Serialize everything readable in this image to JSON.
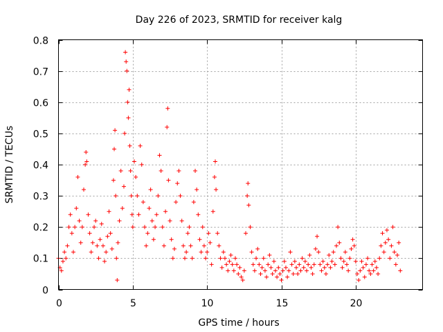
{
  "chart_data": {
    "type": "scatter",
    "title": "Day 226 of 2023, SRMTID for receiver kalg",
    "xlabel": "GPS time / hours",
    "ylabel": "SRMTID / TECUs",
    "xlim": [
      0,
      24.5
    ],
    "ylim": [
      0,
      0.8
    ],
    "x_ticks": [
      0,
      5,
      10,
      15,
      20
    ],
    "x_tick_labels": [
      "0",
      "5",
      "10",
      "15",
      "20"
    ],
    "y_ticks": [
      0,
      0.1,
      0.2,
      0.3,
      0.4,
      0.5,
      0.6,
      0.7,
      0.8
    ],
    "y_tick_labels": [
      "0",
      "0.1",
      "0.2",
      "0.3",
      "0.4",
      "0.5",
      "0.6",
      "0.7",
      "0.8"
    ],
    "grid": true,
    "marker": "+",
    "color": "#ff0000",
    "series": [
      {
        "name": "SRMTID",
        "points": [
          [
            0.0,
            0.1
          ],
          [
            0.1,
            0.07
          ],
          [
            0.2,
            0.06
          ],
          [
            0.3,
            0.09
          ],
          [
            0.4,
            0.12
          ],
          [
            0.5,
            0.1
          ],
          [
            0.6,
            0.14
          ],
          [
            0.7,
            0.2
          ],
          [
            0.8,
            0.24
          ],
          [
            0.9,
            0.18
          ],
          [
            1.0,
            0.12
          ],
          [
            1.1,
            0.2
          ],
          [
            1.2,
            0.26
          ],
          [
            1.3,
            0.36
          ],
          [
            1.4,
            0.22
          ],
          [
            1.5,
            0.15
          ],
          [
            1.6,
            0.2
          ],
          [
            1.7,
            0.32
          ],
          [
            1.8,
            0.4
          ],
          [
            1.85,
            0.44
          ],
          [
            1.9,
            0.41
          ],
          [
            2.0,
            0.24
          ],
          [
            2.1,
            0.18
          ],
          [
            2.2,
            0.12
          ],
          [
            2.3,
            0.15
          ],
          [
            2.4,
            0.2
          ],
          [
            2.5,
            0.22
          ],
          [
            2.6,
            0.14
          ],
          [
            2.7,
            0.1
          ],
          [
            2.8,
            0.16
          ],
          [
            2.9,
            0.21
          ],
          [
            3.0,
            0.14
          ],
          [
            3.1,
            0.09
          ],
          [
            3.2,
            0.12
          ],
          [
            3.3,
            0.17
          ],
          [
            3.4,
            0.25
          ],
          [
            3.5,
            0.18
          ],
          [
            3.6,
            0.13
          ],
          [
            3.7,
            0.35
          ],
          [
            3.75,
            0.45
          ],
          [
            3.8,
            0.51
          ],
          [
            3.85,
            0.3
          ],
          [
            3.9,
            0.1
          ],
          [
            3.95,
            0.03
          ],
          [
            4.0,
            0.15
          ],
          [
            4.1,
            0.22
          ],
          [
            4.2,
            0.38
          ],
          [
            4.3,
            0.26
          ],
          [
            4.4,
            0.33
          ],
          [
            4.45,
            0.5
          ],
          [
            4.5,
            0.76
          ],
          [
            4.55,
            0.73
          ],
          [
            4.6,
            0.7
          ],
          [
            4.65,
            0.6
          ],
          [
            4.7,
            0.55
          ],
          [
            4.75,
            0.64
          ],
          [
            4.8,
            0.46
          ],
          [
            4.85,
            0.38
          ],
          [
            4.9,
            0.3
          ],
          [
            4.95,
            0.24
          ],
          [
            5.0,
            0.2
          ],
          [
            5.1,
            0.41
          ],
          [
            5.2,
            0.36
          ],
          [
            5.3,
            0.3
          ],
          [
            5.4,
            0.24
          ],
          [
            5.5,
            0.46
          ],
          [
            5.6,
            0.4
          ],
          [
            5.7,
            0.28
          ],
          [
            5.8,
            0.2
          ],
          [
            5.9,
            0.14
          ],
          [
            6.0,
            0.18
          ],
          [
            6.1,
            0.26
          ],
          [
            6.2,
            0.32
          ],
          [
            6.3,
            0.22
          ],
          [
            6.4,
            0.16
          ],
          [
            6.5,
            0.2
          ],
          [
            6.6,
            0.24
          ],
          [
            6.7,
            0.3
          ],
          [
            6.8,
            0.43
          ],
          [
            6.9,
            0.38
          ],
          [
            7.0,
            0.2
          ],
          [
            7.1,
            0.14
          ],
          [
            7.2,
            0.25
          ],
          [
            7.3,
            0.52
          ],
          [
            7.35,
            0.58
          ],
          [
            7.4,
            0.35
          ],
          [
            7.5,
            0.22
          ],
          [
            7.6,
            0.16
          ],
          [
            7.7,
            0.1
          ],
          [
            7.8,
            0.13
          ],
          [
            7.9,
            0.28
          ],
          [
            8.0,
            0.34
          ],
          [
            8.1,
            0.38
          ],
          [
            8.2,
            0.3
          ],
          [
            8.3,
            0.22
          ],
          [
            8.4,
            0.14
          ],
          [
            8.5,
            0.1
          ],
          [
            8.6,
            0.12
          ],
          [
            8.7,
            0.18
          ],
          [
            8.8,
            0.2
          ],
          [
            8.9,
            0.14
          ],
          [
            9.0,
            0.1
          ],
          [
            9.1,
            0.28
          ],
          [
            9.2,
            0.38
          ],
          [
            9.3,
            0.32
          ],
          [
            9.4,
            0.24
          ],
          [
            9.5,
            0.16
          ],
          [
            9.6,
            0.12
          ],
          [
            9.7,
            0.2
          ],
          [
            9.8,
            0.14
          ],
          [
            9.9,
            0.1
          ],
          [
            10.0,
            0.12
          ],
          [
            10.1,
            0.18
          ],
          [
            10.2,
            0.15
          ],
          [
            10.3,
            0.08
          ],
          [
            10.4,
            0.25
          ],
          [
            10.5,
            0.36
          ],
          [
            10.55,
            0.41
          ],
          [
            10.6,
            0.32
          ],
          [
            10.7,
            0.18
          ],
          [
            10.8,
            0.14
          ],
          [
            10.9,
            0.1
          ],
          [
            11.0,
            0.07
          ],
          [
            11.1,
            0.12
          ],
          [
            11.2,
            0.1
          ],
          [
            11.3,
            0.08
          ],
          [
            11.4,
            0.06
          ],
          [
            11.5,
            0.09
          ],
          [
            11.6,
            0.11
          ],
          [
            11.7,
            0.08
          ],
          [
            11.8,
            0.06
          ],
          [
            11.9,
            0.1
          ],
          [
            12.0,
            0.08
          ],
          [
            12.1,
            0.05
          ],
          [
            12.2,
            0.07
          ],
          [
            12.3,
            0.04
          ],
          [
            12.4,
            0.03
          ],
          [
            12.5,
            0.06
          ],
          [
            12.6,
            0.18
          ],
          [
            12.7,
            0.3
          ],
          [
            12.75,
            0.34
          ],
          [
            12.8,
            0.27
          ],
          [
            12.9,
            0.2
          ],
          [
            13.0,
            0.12
          ],
          [
            13.1,
            0.08
          ],
          [
            13.2,
            0.06
          ],
          [
            13.3,
            0.1
          ],
          [
            13.4,
            0.13
          ],
          [
            13.5,
            0.08
          ],
          [
            13.6,
            0.05
          ],
          [
            13.7,
            0.07
          ],
          [
            13.8,
            0.1
          ],
          [
            13.9,
            0.06
          ],
          [
            14.0,
            0.04
          ],
          [
            14.1,
            0.08
          ],
          [
            14.2,
            0.11
          ],
          [
            14.3,
            0.07
          ],
          [
            14.4,
            0.05
          ],
          [
            14.5,
            0.09
          ],
          [
            14.6,
            0.06
          ],
          [
            14.7,
            0.04
          ],
          [
            14.8,
            0.07
          ],
          [
            14.9,
            0.05
          ],
          [
            15.0,
            0.03
          ],
          [
            15.1,
            0.06
          ],
          [
            15.2,
            0.09
          ],
          [
            15.3,
            0.07
          ],
          [
            15.4,
            0.04
          ],
          [
            15.5,
            0.06
          ],
          [
            15.6,
            0.12
          ],
          [
            15.7,
            0.08
          ],
          [
            15.8,
            0.05
          ],
          [
            15.9,
            0.09
          ],
          [
            16.0,
            0.07
          ],
          [
            16.1,
            0.05
          ],
          [
            16.2,
            0.08
          ],
          [
            16.3,
            0.06
          ],
          [
            16.4,
            0.1
          ],
          [
            16.5,
            0.07
          ],
          [
            16.6,
            0.09
          ],
          [
            16.7,
            0.06
          ],
          [
            16.8,
            0.08
          ],
          [
            16.9,
            0.11
          ],
          [
            17.0,
            0.07
          ],
          [
            17.1,
            0.05
          ],
          [
            17.2,
            0.08
          ],
          [
            17.3,
            0.13
          ],
          [
            17.4,
            0.17
          ],
          [
            17.5,
            0.12
          ],
          [
            17.6,
            0.08
          ],
          [
            17.7,
            0.06
          ],
          [
            17.8,
            0.09
          ],
          [
            17.9,
            0.07
          ],
          [
            18.0,
            0.05
          ],
          [
            18.1,
            0.08
          ],
          [
            18.2,
            0.11
          ],
          [
            18.3,
            0.07
          ],
          [
            18.4,
            0.09
          ],
          [
            18.5,
            0.12
          ],
          [
            18.6,
            0.08
          ],
          [
            18.7,
            0.14
          ],
          [
            18.8,
            0.2
          ],
          [
            18.9,
            0.15
          ],
          [
            19.0,
            0.1
          ],
          [
            19.1,
            0.07
          ],
          [
            19.2,
            0.09
          ],
          [
            19.3,
            0.12
          ],
          [
            19.4,
            0.08
          ],
          [
            19.5,
            0.06
          ],
          [
            19.6,
            0.1
          ],
          [
            19.7,
            0.13
          ],
          [
            19.8,
            0.16
          ],
          [
            19.9,
            0.14
          ],
          [
            20.0,
            0.09
          ],
          [
            20.1,
            0.05
          ],
          [
            20.2,
            0.03
          ],
          [
            20.3,
            0.06
          ],
          [
            20.4,
            0.09
          ],
          [
            20.5,
            0.07
          ],
          [
            20.6,
            0.04
          ],
          [
            20.7,
            0.08
          ],
          [
            20.8,
            0.1
          ],
          [
            20.9,
            0.06
          ],
          [
            21.0,
            0.05
          ],
          [
            21.1,
            0.08
          ],
          [
            21.2,
            0.06
          ],
          [
            21.3,
            0.09
          ],
          [
            21.4,
            0.07
          ],
          [
            21.5,
            0.05
          ],
          [
            21.6,
            0.1
          ],
          [
            21.7,
            0.14
          ],
          [
            21.8,
            0.18
          ],
          [
            21.9,
            0.12
          ],
          [
            22.0,
            0.15
          ],
          [
            22.1,
            0.19
          ],
          [
            22.2,
            0.16
          ],
          [
            22.3,
            0.1
          ],
          [
            22.4,
            0.14
          ],
          [
            22.5,
            0.2
          ],
          [
            22.6,
            0.12
          ],
          [
            22.7,
            0.08
          ],
          [
            22.8,
            0.11
          ],
          [
            22.9,
            0.15
          ],
          [
            23.0,
            0.06
          ]
        ]
      }
    ]
  }
}
